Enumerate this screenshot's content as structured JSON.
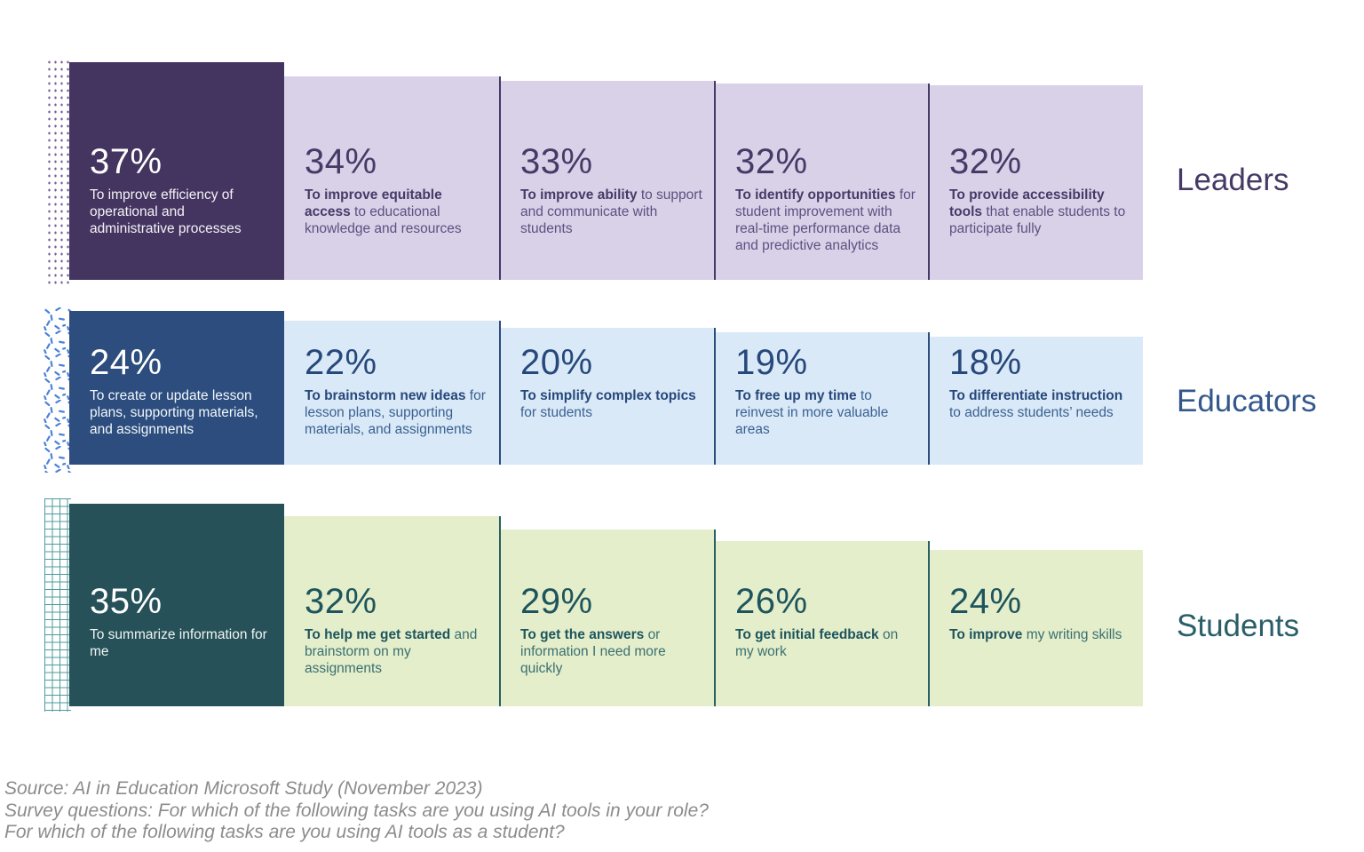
{
  "rows": [
    {
      "label": "Leaders",
      "pattern": "dots",
      "colors": {
        "dark": "#443560",
        "light": "#D8D1E8",
        "strong": "#463A67",
        "soft": "#5D5080",
        "on_dark": "#F5F2F8",
        "pattern": "#7A5F9F",
        "separator": "#463A67",
        "label": "#453A66"
      },
      "blocks": [
        {
          "value": "37%",
          "bold": "",
          "rest": "To improve efficiency of operational and administrative processes"
        },
        {
          "value": "34%",
          "bold": "To improve equitable access",
          "rest": "to educational knowledge and resources"
        },
        {
          "value": "33%",
          "bold": "To improve ability",
          "rest": "to support and communicate with students"
        },
        {
          "value": "32%",
          "bold": "To identify opportunities",
          "rest": "for student improvement with real-time performance data and predictive analytics"
        },
        {
          "value": "32%",
          "bold": "To provide accessibility tools",
          "rest": "that enable students to participate fully"
        }
      ]
    },
    {
      "label": "Educators",
      "pattern": "confetti",
      "colors": {
        "dark": "#2C4D7D",
        "light": "#D9E9F8",
        "strong": "#27487A",
        "soft": "#3A6191",
        "on_dark": "#F2F7FC",
        "pattern": "#4C82D9",
        "separator": "#2E4D7B",
        "label": "#33588C"
      },
      "blocks": [
        {
          "value": "24%",
          "bold": "",
          "rest": "To create or update lesson plans, supporting materials, and assignments"
        },
        {
          "value": "22%",
          "bold": "To brainstorm new ideas",
          "rest": "for lesson plans, supporting materials, and assignments"
        },
        {
          "value": "20%",
          "bold": "To simplify complex topics",
          "rest": "for students"
        },
        {
          "value": "19%",
          "bold": "To free up my time",
          "rest": "to reinvest in more valuable areas"
        },
        {
          "value": "18%",
          "bold": "To differentiate instruction",
          "rest": "to address students’ needs"
        }
      ]
    },
    {
      "label": "Students",
      "pattern": "grid",
      "colors": {
        "dark": "#265159",
        "light": "#E4EECB",
        "strong": "#1E555D",
        "soft": "#3A6F70",
        "on_dark": "#F0F5F3",
        "pattern": "#2F8A8C",
        "separator": "#2A5F63",
        "label": "#2A5F68"
      },
      "blocks": [
        {
          "value": "35%",
          "bold": "",
          "rest": "To summarize information for me"
        },
        {
          "value": "32%",
          "bold": "To help me get started",
          "rest": "and brainstorm on my assignments"
        },
        {
          "value": "29%",
          "bold": "To get the answers",
          "rest": "or information I need more quickly"
        },
        {
          "value": "26%",
          "bold": "To get initial feedback",
          "rest": "on my work"
        },
        {
          "value": "24%",
          "bold": "To improve",
          "rest": "my writing skills"
        }
      ]
    }
  ],
  "footer": {
    "lines": [
      "Source: AI in Education Microsoft Study (November 2023)",
      "Survey questions: For which of the following tasks are you using AI tools in your role?",
      "For which of the following tasks are you using AI tools as a student?"
    ]
  },
  "chart_data": {
    "type": "bar",
    "unit": "%",
    "series": [
      {
        "name": "Leaders",
        "values": [
          37,
          34,
          33,
          32,
          32
        ],
        "labels": [
          "To improve efficiency of operational and administrative processes",
          "To improve equitable access to educational knowledge and resources",
          "To improve ability to support and communicate with students",
          "To identify opportunities for student improvement with real-time performance data and predictive analytics",
          "To provide accessibility tools that enable students to participate fully"
        ]
      },
      {
        "name": "Educators",
        "values": [
          24,
          22,
          20,
          19,
          18
        ],
        "labels": [
          "To create or update lesson plans, supporting materials, and assignments",
          "To brainstorm new ideas for lesson plans, supporting materials, and assignments",
          "To simplify complex topics for students",
          "To free up my time to reinvest in more valuable areas",
          "To differentiate instruction to address students’ needs"
        ]
      },
      {
        "name": "Students",
        "values": [
          35,
          32,
          29,
          26,
          24
        ],
        "labels": [
          "To summarize information for me",
          "To help me get started and brainstorm on my assignments",
          "To get the answers or information I need more quickly",
          "To get initial feedback on my work",
          "To improve my writing skills"
        ]
      }
    ],
    "source": "Source: AI in Education Microsoft Study (November 2023)",
    "notes": [
      "Survey questions: For which of the following tasks are you using AI tools in your role?",
      "For which of the following tasks are you using AI tools as a student?"
    ],
    "legend_position": "right",
    "grid": false
  }
}
